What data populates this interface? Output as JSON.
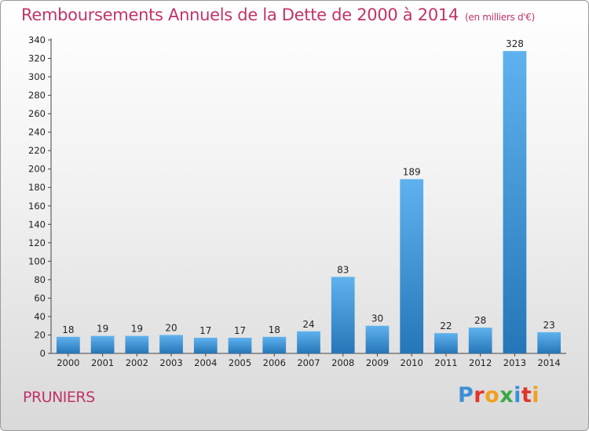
{
  "title": "Remboursements Annuels de la Dette de 2000 à 2014",
  "subtitle": "(en milliers d'€)",
  "place": "PRUNIERS",
  "logo": {
    "letters": [
      "P",
      "r",
      "o",
      "x",
      "i",
      "t",
      "i"
    ],
    "colors": [
      "#3d8fd6",
      "#e2342b",
      "#f0a020",
      "#3aa845",
      "#3d8fd6",
      "#e2342b",
      "#f0a020"
    ]
  },
  "colors": {
    "title": "#c0336a",
    "bar_light": "#5fb2ee",
    "bar_dark": "#2576b8"
  },
  "chart_data": {
    "type": "bar",
    "title": "Remboursements Annuels de la Dette de 2000 à 2014",
    "subtitle": "(en milliers d'€)",
    "xlabel": "",
    "ylabel": "",
    "categories": [
      "2000",
      "2001",
      "2002",
      "2003",
      "2004",
      "2005",
      "2006",
      "2007",
      "2008",
      "2009",
      "2010",
      "2011",
      "2012",
      "2013",
      "2014"
    ],
    "values": [
      18,
      19,
      19,
      20,
      17,
      17,
      18,
      24,
      83,
      30,
      189,
      22,
      28,
      328,
      23
    ],
    "ylim": [
      0,
      340
    ],
    "yticks": [
      0,
      20,
      40,
      60,
      80,
      100,
      120,
      140,
      160,
      180,
      200,
      220,
      240,
      260,
      280,
      300,
      320,
      340
    ],
    "grid": false
  }
}
